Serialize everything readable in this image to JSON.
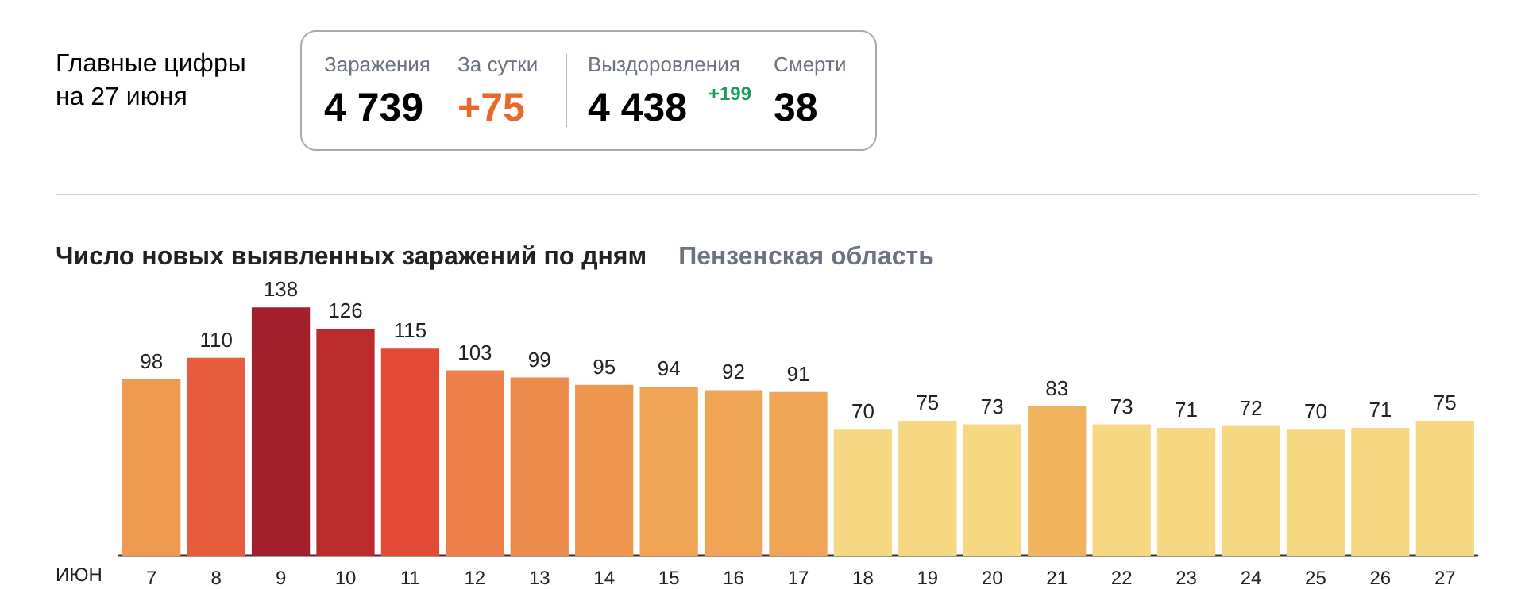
{
  "chart_data": [
    {
      "type": "other",
      "title": "Главные цифры на 27 июня",
      "annotations": [
        "Заражения",
        "4 739",
        "За сутки",
        "+75",
        "Выздоровления",
        "4 438",
        "+199",
        "Смерти",
        "38"
      ]
    },
    {
      "type": "bar",
      "title": "Число новых выявленных заражений по дням",
      "subtitle": "Пензенская область",
      "xlabel": "ИЮН",
      "categories": [
        "7",
        "8",
        "9",
        "10",
        "11",
        "12",
        "13",
        "14",
        "15",
        "16",
        "17",
        "18",
        "19",
        "20",
        "21",
        "22",
        "23",
        "24",
        "25",
        "26",
        "27"
      ],
      "values": [
        98,
        110,
        138,
        126,
        115,
        103,
        99,
        95,
        94,
        92,
        91,
        70,
        75,
        73,
        83,
        73,
        71,
        72,
        70,
        71,
        75
      ],
      "colors": [
        "#ee9a50",
        "#e65c3c",
        "#a21f2c",
        "#bb2a2c",
        "#e04a36",
        "#ed8049",
        "#ee8c4d",
        "#ef9650",
        "#f0a456",
        "#f0a456",
        "#f0a456",
        "#f6d882",
        "#f6d882",
        "#f6d882",
        "#f0b45e",
        "#f6d882",
        "#f6d882",
        "#f6d882",
        "#f6d882",
        "#f6d882",
        "#f6d882"
      ],
      "data_labels": true
    }
  ]
}
